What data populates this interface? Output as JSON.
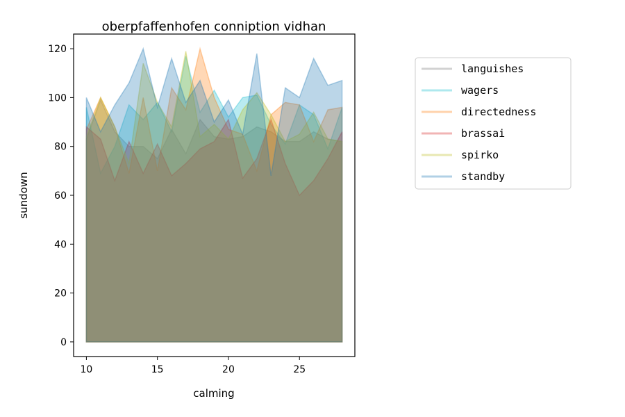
{
  "chart_data": {
    "type": "area",
    "title": "oberpfaffenhofen conniption vidhan",
    "xlabel": "calming",
    "ylabel": "sundown",
    "xlim": [
      9.1,
      28.9
    ],
    "ylim": [
      -6,
      126
    ],
    "x_ticks": [
      10,
      15,
      20,
      25
    ],
    "y_ticks": [
      0,
      20,
      40,
      60,
      80,
      100,
      120
    ],
    "grid": false,
    "legend_position": "upper-right-outside",
    "x": [
      10,
      11,
      12,
      13,
      14,
      15,
      16,
      17,
      18,
      19,
      20,
      21,
      22,
      23,
      24,
      25,
      26,
      27,
      28
    ],
    "series": [
      {
        "name": "languishes",
        "color": "#7f7f7f",
        "values": [
          83,
          99,
          86,
          80,
          80,
          75,
          87,
          77,
          91,
          84,
          83,
          84,
          88,
          86,
          82,
          82,
          86,
          83,
          82
        ]
      },
      {
        "name": "wagers",
        "color": "#17becf",
        "values": [
          96,
          69,
          80,
          97,
          91,
          98,
          86,
          117,
          94,
          103,
          92,
          100,
          101,
          89,
          81,
          97,
          93,
          79,
          96
        ]
      },
      {
        "name": "directedness",
        "color": "#ff7f0e",
        "values": [
          87,
          100,
          88,
          69,
          100,
          70,
          104,
          95,
          120,
          100,
          87,
          85,
          70,
          93,
          98,
          97,
          82,
          95,
          96
        ]
      },
      {
        "name": "brassai",
        "color": "#d62728",
        "values": [
          88,
          83,
          66,
          82,
          69,
          81,
          68,
          73,
          79,
          82,
          91,
          67,
          75,
          91,
          73,
          60,
          66,
          75,
          86
        ]
      },
      {
        "name": "spirko",
        "color": "#bcbd22",
        "values": [
          84,
          100,
          88,
          73,
          114,
          98,
          88,
          119,
          84,
          89,
          83,
          95,
          102,
          93,
          82,
          85,
          94,
          83,
          82
        ]
      },
      {
        "name": "standby",
        "color": "#1f77b4",
        "values": [
          100,
          86,
          97,
          106,
          120,
          96,
          116,
          98,
          107,
          90,
          99,
          85,
          118,
          68,
          104,
          100,
          116,
          105,
          107
        ]
      }
    ]
  }
}
